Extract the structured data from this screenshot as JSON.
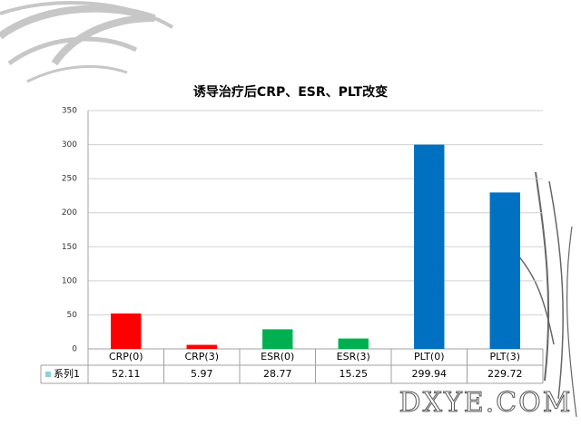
{
  "chart_data": {
    "type": "bar",
    "title": "诱导治疗后CRP、ESR、PLT改变",
    "categories": [
      "CRP(0)",
      "CRP(3)",
      "ESR(0)",
      "ESR(3)",
      "PLT(0)",
      "PLT(3)"
    ],
    "series": [
      {
        "name": "系列1",
        "color": "#8fd0dc",
        "values": [
          52.11,
          5.97,
          28.77,
          15.25,
          299.94,
          229.72
        ],
        "point_colors": [
          "#ff0000",
          "#ff0000",
          "#00b050",
          "#00b050",
          "#0070c0",
          "#0070c0"
        ]
      }
    ],
    "ylim": [
      0,
      350
    ],
    "yticks": [
      0,
      50,
      100,
      150,
      200,
      250,
      300,
      350
    ],
    "grid": true,
    "watermark": "DXYE.COM"
  }
}
